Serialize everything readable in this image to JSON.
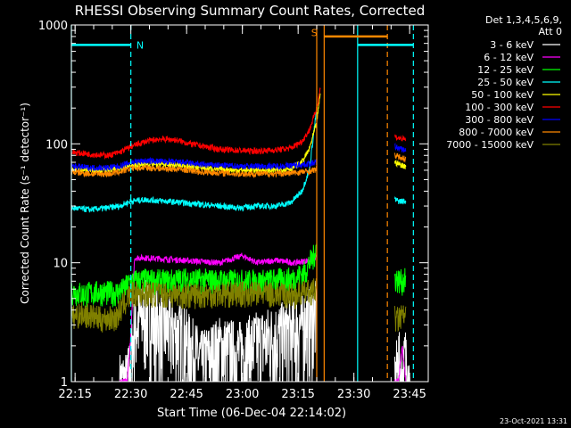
{
  "chart_data": {
    "type": "line",
    "title": "RHESSI Observing Summary Count Rates, Corrected",
    "xlabel": "Start Time (06-Dec-04 22:14:02)",
    "ylabel": "Corrected Count Rate (s⁻¹ detector⁻¹)",
    "ylim": [
      1,
      1000
    ],
    "yscale": "log",
    "xlim_minutes": [
      0,
      96
    ],
    "x_ticks": [
      {
        "label": "22:15",
        "minute": 1
      },
      {
        "label": "22:30",
        "minute": 16
      },
      {
        "label": "22:45",
        "minute": 31
      },
      {
        "label": "23:00",
        "minute": 46
      },
      {
        "label": "23:15",
        "minute": 61
      },
      {
        "label": "23:30",
        "minute": 76
      },
      {
        "label": "23:45",
        "minute": 91
      }
    ],
    "y_ticks": [
      {
        "label": "1",
        "value": 1
      },
      {
        "label": "10",
        "value": 10
      },
      {
        "label": "100",
        "value": 100
      },
      {
        "label": "1000",
        "value": 1000
      }
    ],
    "legend": {
      "header": [
        "Det 1,3,4,5,6,9,",
        "Att 0"
      ],
      "placement": "right-outside"
    },
    "series": [
      {
        "name": "3 - 6 keV",
        "color": "#ffffff",
        "points": [
          [
            13,
            1
          ],
          [
            15,
            1
          ],
          [
            16,
            1.6
          ],
          [
            17,
            3
          ],
          [
            20,
            4
          ],
          [
            25,
            3
          ],
          [
            30,
            2.5
          ],
          [
            35,
            1.5
          ],
          [
            40,
            2
          ],
          [
            45,
            1.8
          ],
          [
            50,
            2.2
          ],
          [
            55,
            2.5
          ],
          [
            60,
            2.8
          ],
          [
            64,
            3.5
          ],
          [
            66,
            4
          ]
        ],
        "points2": [
          [
            87,
            1
          ],
          [
            88,
            1.6
          ],
          [
            89,
            1
          ],
          [
            90,
            1.8
          ],
          [
            91,
            1
          ]
        ]
      },
      {
        "name": "6 - 12 keV",
        "color": "#ff00ff",
        "points": [
          [
            13,
            1
          ],
          [
            15,
            1
          ],
          [
            16,
            2.5
          ],
          [
            17,
            11
          ],
          [
            20,
            11
          ],
          [
            30,
            10.5
          ],
          [
            40,
            10
          ],
          [
            46,
            11.5
          ],
          [
            50,
            10
          ],
          [
            55,
            10.5
          ],
          [
            60,
            10
          ],
          [
            64,
            10.5
          ],
          [
            66,
            11
          ]
        ],
        "points2": [
          [
            87,
            1
          ],
          [
            88,
            1
          ],
          [
            89,
            2
          ],
          [
            90,
            1
          ]
        ]
      },
      {
        "name": "12 - 25 keV",
        "color": "#00ff00",
        "points": [
          [
            0,
            5.8
          ],
          [
            3,
            5.5
          ],
          [
            8,
            5.7
          ],
          [
            12,
            5.6
          ],
          [
            14,
            6
          ],
          [
            16,
            7
          ],
          [
            20,
            7.2
          ],
          [
            25,
            7
          ],
          [
            30,
            7.3
          ],
          [
            40,
            7.1
          ],
          [
            50,
            7
          ],
          [
            55,
            7.2
          ],
          [
            60,
            7.4
          ],
          [
            63,
            8.5
          ],
          [
            64,
            10
          ],
          [
            65,
            11
          ],
          [
            66,
            14
          ]
        ],
        "points2": [
          [
            87,
            7.5
          ],
          [
            88,
            7.2
          ],
          [
            89,
            7
          ],
          [
            90,
            7.3
          ]
        ]
      },
      {
        "name": "25 - 50 keV",
        "color": "#00ffff",
        "points": [
          [
            0,
            29
          ],
          [
            5,
            28
          ],
          [
            10,
            29
          ],
          [
            13,
            30
          ],
          [
            16,
            33
          ],
          [
            20,
            34
          ],
          [
            25,
            33
          ],
          [
            30,
            32
          ],
          [
            35,
            31
          ],
          [
            40,
            30
          ],
          [
            45,
            29
          ],
          [
            50,
            30
          ],
          [
            55,
            30
          ],
          [
            59,
            32
          ],
          [
            62,
            40
          ],
          [
            64,
            60
          ],
          [
            66,
            200
          ]
        ],
        "points2": [
          [
            87,
            34
          ],
          [
            88,
            33
          ],
          [
            89,
            33
          ],
          [
            90,
            33
          ]
        ]
      },
      {
        "name": "50 - 100 keV",
        "color": "#ffff00",
        "points": [
          [
            0,
            62
          ],
          [
            5,
            60
          ],
          [
            10,
            60
          ],
          [
            13,
            62
          ],
          [
            16,
            65
          ],
          [
            20,
            68
          ],
          [
            25,
            67
          ],
          [
            30,
            66
          ],
          [
            35,
            63
          ],
          [
            40,
            61
          ],
          [
            45,
            60
          ],
          [
            50,
            60
          ],
          [
            55,
            60
          ],
          [
            59,
            62
          ],
          [
            62,
            70
          ],
          [
            64,
            90
          ],
          [
            66,
            150
          ],
          [
            67,
            280
          ]
        ],
        "points2": [
          [
            87,
            70
          ],
          [
            88,
            68
          ],
          [
            89,
            66
          ],
          [
            90,
            65
          ]
        ]
      },
      {
        "name": "100 - 300 keV",
        "color": "#ff0000",
        "points": [
          [
            0,
            85
          ],
          [
            5,
            82
          ],
          [
            10,
            80
          ],
          [
            13,
            85
          ],
          [
            16,
            95
          ],
          [
            20,
            105
          ],
          [
            24,
            110
          ],
          [
            28,
            108
          ],
          [
            32,
            100
          ],
          [
            36,
            95
          ],
          [
            40,
            90
          ],
          [
            45,
            88
          ],
          [
            50,
            87
          ],
          [
            55,
            89
          ],
          [
            59,
            92
          ],
          [
            62,
            105
          ],
          [
            64,
            130
          ],
          [
            66,
            200
          ],
          [
            67,
            300
          ]
        ],
        "points2": [
          [
            87,
            115
          ],
          [
            88,
            112
          ],
          [
            89,
            110
          ],
          [
            90,
            108
          ]
        ]
      },
      {
        "name": "300 - 800 keV",
        "color": "#0000ff",
        "points": [
          [
            0,
            65
          ],
          [
            5,
            63
          ],
          [
            10,
            63
          ],
          [
            13,
            65
          ],
          [
            16,
            70
          ],
          [
            20,
            72
          ],
          [
            25,
            71
          ],
          [
            30,
            70
          ],
          [
            35,
            67
          ],
          [
            40,
            66
          ],
          [
            45,
            65
          ],
          [
            50,
            65
          ],
          [
            55,
            65
          ],
          [
            60,
            66
          ],
          [
            64,
            68
          ],
          [
            66,
            70
          ]
        ],
        "points2": [
          [
            87,
            95
          ],
          [
            88,
            92
          ],
          [
            89,
            90
          ],
          [
            90,
            88
          ]
        ]
      },
      {
        "name": "800 - 7000 keV",
        "color": "#ff8800",
        "points": [
          [
            0,
            58
          ],
          [
            5,
            56
          ],
          [
            10,
            56
          ],
          [
            13,
            58
          ],
          [
            16,
            62
          ],
          [
            20,
            63
          ],
          [
            25,
            62
          ],
          [
            30,
            61
          ],
          [
            35,
            58
          ],
          [
            40,
            57
          ],
          [
            45,
            56
          ],
          [
            50,
            56
          ],
          [
            55,
            56
          ],
          [
            60,
            57
          ],
          [
            64,
            59
          ],
          [
            66,
            61
          ]
        ],
        "points2": [
          [
            87,
            80
          ],
          [
            88,
            78
          ],
          [
            89,
            76
          ],
          [
            90,
            75
          ]
        ]
      },
      {
        "name": "7000 - 15000 keV",
        "color": "#808000",
        "points": [
          [
            0,
            3.5
          ],
          [
            3,
            3.8
          ],
          [
            8,
            3.4
          ],
          [
            12,
            3.5
          ],
          [
            14,
            4.5
          ],
          [
            16,
            5.5
          ],
          [
            20,
            5.6
          ],
          [
            25,
            5.5
          ],
          [
            30,
            5.4
          ],
          [
            40,
            5.5
          ],
          [
            50,
            5.6
          ],
          [
            55,
            5.5
          ],
          [
            60,
            5.4
          ],
          [
            64,
            5.8
          ],
          [
            66,
            6
          ]
        ],
        "points2": [
          [
            87,
            3.5
          ],
          [
            88,
            3.4
          ],
          [
            89,
            3.6
          ],
          [
            90,
            3.5
          ]
        ]
      }
    ],
    "annotations": [
      {
        "type": "vline",
        "style": "solid",
        "color": "#00ffff",
        "minute": 0
      },
      {
        "type": "vline",
        "style": "dashed",
        "color": "#00ffff",
        "minute": 16
      },
      {
        "type": "vline",
        "style": "solid",
        "color": "#ff8800",
        "minute": 66
      },
      {
        "type": "vline",
        "style": "solid",
        "color": "#ff8800",
        "minute": 68
      },
      {
        "type": "vline",
        "style": "solid",
        "color": "#00ffff",
        "minute": 77
      },
      {
        "type": "vline",
        "style": "dashed",
        "color": "#ff8800",
        "minute": 85
      },
      {
        "type": "vline",
        "style": "dashed",
        "color": "#00ffff",
        "minute": 92
      },
      {
        "type": "hbar",
        "color": "#00ffff",
        "from": 0,
        "to": 16,
        "value": 680
      },
      {
        "type": "hbar",
        "color": "#ff8800",
        "from": 68,
        "to": 85,
        "value": 800
      },
      {
        "type": "hbar",
        "color": "#00ffff",
        "from": 77,
        "to": 92,
        "value": 680
      },
      {
        "type": "label",
        "text": "N",
        "color": "#00ffff",
        "minute": 17.5,
        "value": 680
      },
      {
        "type": "label",
        "text": "S",
        "color": "#ff8800",
        "minute": 64.5,
        "value": 860
      }
    ]
  },
  "timestamp": "23-Oct-2021 13:31"
}
